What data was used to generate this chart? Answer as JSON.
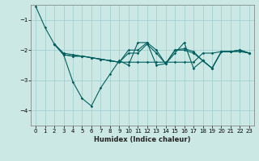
{
  "xlabel": "Humidex (Indice chaleur)",
  "background_color": "#cce8e4",
  "grid_color": "#99cccc",
  "line_color": "#006060",
  "xmin": -0.5,
  "xmax": 23.5,
  "ymin": -4.5,
  "ymax": -0.5,
  "yticks": [
    -4,
    -3,
    -2,
    -1
  ],
  "xticks": [
    0,
    1,
    2,
    3,
    4,
    5,
    6,
    7,
    8,
    9,
    10,
    11,
    12,
    13,
    14,
    15,
    16,
    17,
    18,
    19,
    20,
    21,
    22,
    23
  ],
  "line1_x": [
    0,
    1,
    2,
    3,
    4,
    5,
    6,
    7,
    8,
    9,
    10,
    11,
    12,
    13,
    14,
    15,
    16,
    17,
    18,
    19,
    20,
    21,
    22,
    23
  ],
  "line1_y": [
    -0.55,
    -1.25,
    -1.8,
    -2.1,
    -2.15,
    -2.2,
    -2.25,
    -2.3,
    -2.35,
    -2.4,
    -2.4,
    -2.4,
    -2.4,
    -2.4,
    -2.4,
    -2.4,
    -2.4,
    -2.4,
    -2.1,
    -2.1,
    -2.05,
    -2.05,
    -2.05,
    -2.1
  ],
  "line2_x": [
    2,
    3,
    4,
    5,
    6,
    7,
    8,
    9,
    10,
    11,
    12,
    13,
    14,
    15,
    16,
    17,
    18,
    19,
    20,
    21,
    22,
    23
  ],
  "line2_y": [
    -1.8,
    -2.15,
    -3.05,
    -3.6,
    -3.85,
    -3.25,
    -2.8,
    -2.35,
    -2.5,
    -1.75,
    -1.75,
    -2.5,
    -2.45,
    -2.1,
    -1.75,
    -2.6,
    -2.35,
    -2.6,
    -2.05,
    -2.05,
    -2.0,
    -2.1
  ],
  "line3_x": [
    2,
    3,
    4,
    5,
    6,
    7,
    8,
    9,
    10,
    11,
    12,
    13,
    14,
    15,
    16,
    17,
    18,
    19,
    20,
    21,
    22,
    23
  ],
  "line3_y": [
    -1.8,
    -2.15,
    -2.2,
    -2.2,
    -2.25,
    -2.3,
    -2.35,
    -2.4,
    -2.0,
    -2.0,
    -1.75,
    -2.0,
    -2.45,
    -2.0,
    -2.0,
    -2.1,
    -2.35,
    -2.6,
    -2.05,
    -2.05,
    -2.0,
    -2.1
  ],
  "line4_x": [
    2,
    3,
    4,
    5,
    6,
    7,
    8,
    9,
    10,
    11,
    12,
    13,
    14,
    15,
    16,
    17,
    18,
    19,
    20,
    21,
    22,
    23
  ],
  "line4_y": [
    -1.8,
    -2.15,
    -2.2,
    -2.2,
    -2.25,
    -2.3,
    -2.35,
    -2.4,
    -2.1,
    -2.1,
    -1.8,
    -2.1,
    -2.45,
    -2.0,
    -1.95,
    -2.05,
    -2.35,
    -2.6,
    -2.05,
    -2.05,
    -2.0,
    -2.1
  ]
}
